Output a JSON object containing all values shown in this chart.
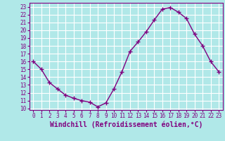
{
  "x": [
    0,
    1,
    2,
    3,
    4,
    5,
    6,
    7,
    8,
    9,
    10,
    11,
    12,
    13,
    14,
    15,
    16,
    17,
    18,
    19,
    20,
    21,
    22,
    23
  ],
  "y": [
    16,
    15,
    13.3,
    12.5,
    11.7,
    11.3,
    11.0,
    10.8,
    10.2,
    10.7,
    12.5,
    14.7,
    17.3,
    18.5,
    19.8,
    21.3,
    22.7,
    22.9,
    22.3,
    21.5,
    19.5,
    18.0,
    16.0,
    14.7
  ],
  "color": "#800080",
  "bg_color": "#b0e8e8",
  "grid_color": "#ffffff",
  "xlabel": "Windchill (Refroidissement éolien,°C)",
  "xlim": [
    -0.5,
    23.5
  ],
  "ylim": [
    9.8,
    23.5
  ],
  "yticks": [
    10,
    11,
    12,
    13,
    14,
    15,
    16,
    17,
    18,
    19,
    20,
    21,
    22,
    23
  ],
  "xticks": [
    0,
    1,
    2,
    3,
    4,
    5,
    6,
    7,
    8,
    9,
    10,
    11,
    12,
    13,
    14,
    15,
    16,
    17,
    18,
    19,
    20,
    21,
    22,
    23
  ],
  "marker": "+",
  "linewidth": 1.0,
  "markersize": 4,
  "markeredgewidth": 1.0,
  "xlabel_fontsize": 7,
  "tick_fontsize": 5.5
}
